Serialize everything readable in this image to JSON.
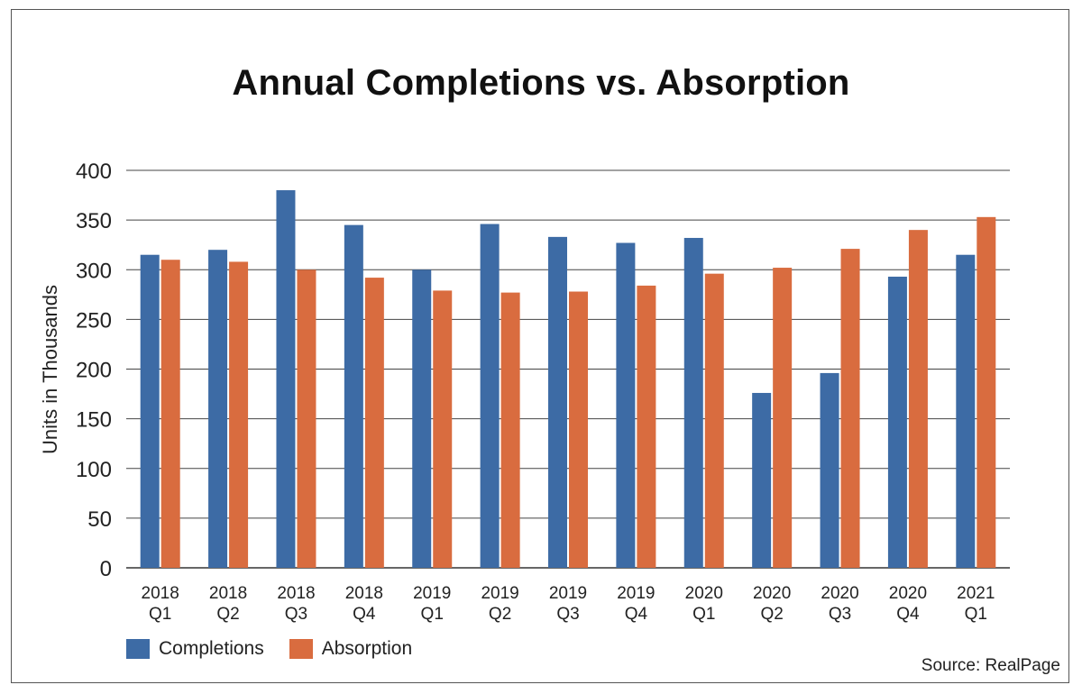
{
  "chart_data": {
    "type": "bar",
    "title": "Annual Completions vs. Absorption",
    "ylabel": "Units in Thousands",
    "ylim": [
      0,
      400
    ],
    "yticks": [
      0,
      50,
      100,
      150,
      200,
      250,
      300,
      350,
      400
    ],
    "grid": true,
    "legend_position": "bottom-left",
    "categories": [
      [
        "2018",
        "Q1"
      ],
      [
        "2018",
        "Q2"
      ],
      [
        "2018",
        "Q3"
      ],
      [
        "2018",
        "Q4"
      ],
      [
        "2019",
        "Q1"
      ],
      [
        "2019",
        "Q2"
      ],
      [
        "2019",
        "Q3"
      ],
      [
        "2019",
        "Q4"
      ],
      [
        "2020",
        "Q1"
      ],
      [
        "2020",
        "Q2"
      ],
      [
        "2020",
        "Q3"
      ],
      [
        "2020",
        "Q4"
      ],
      [
        "2021",
        "Q1"
      ]
    ],
    "series": [
      {
        "name": "Completions",
        "color": "#3d6ba5",
        "values": [
          315,
          320,
          380,
          345,
          300,
          346,
          333,
          327,
          332,
          176,
          196,
          293,
          315
        ]
      },
      {
        "name": "Absorption",
        "color": "#d96c3f",
        "values": [
          310,
          308,
          300,
          292,
          279,
          277,
          278,
          284,
          296,
          302,
          321,
          340,
          353
        ]
      }
    ],
    "source": "Source: RealPage"
  }
}
